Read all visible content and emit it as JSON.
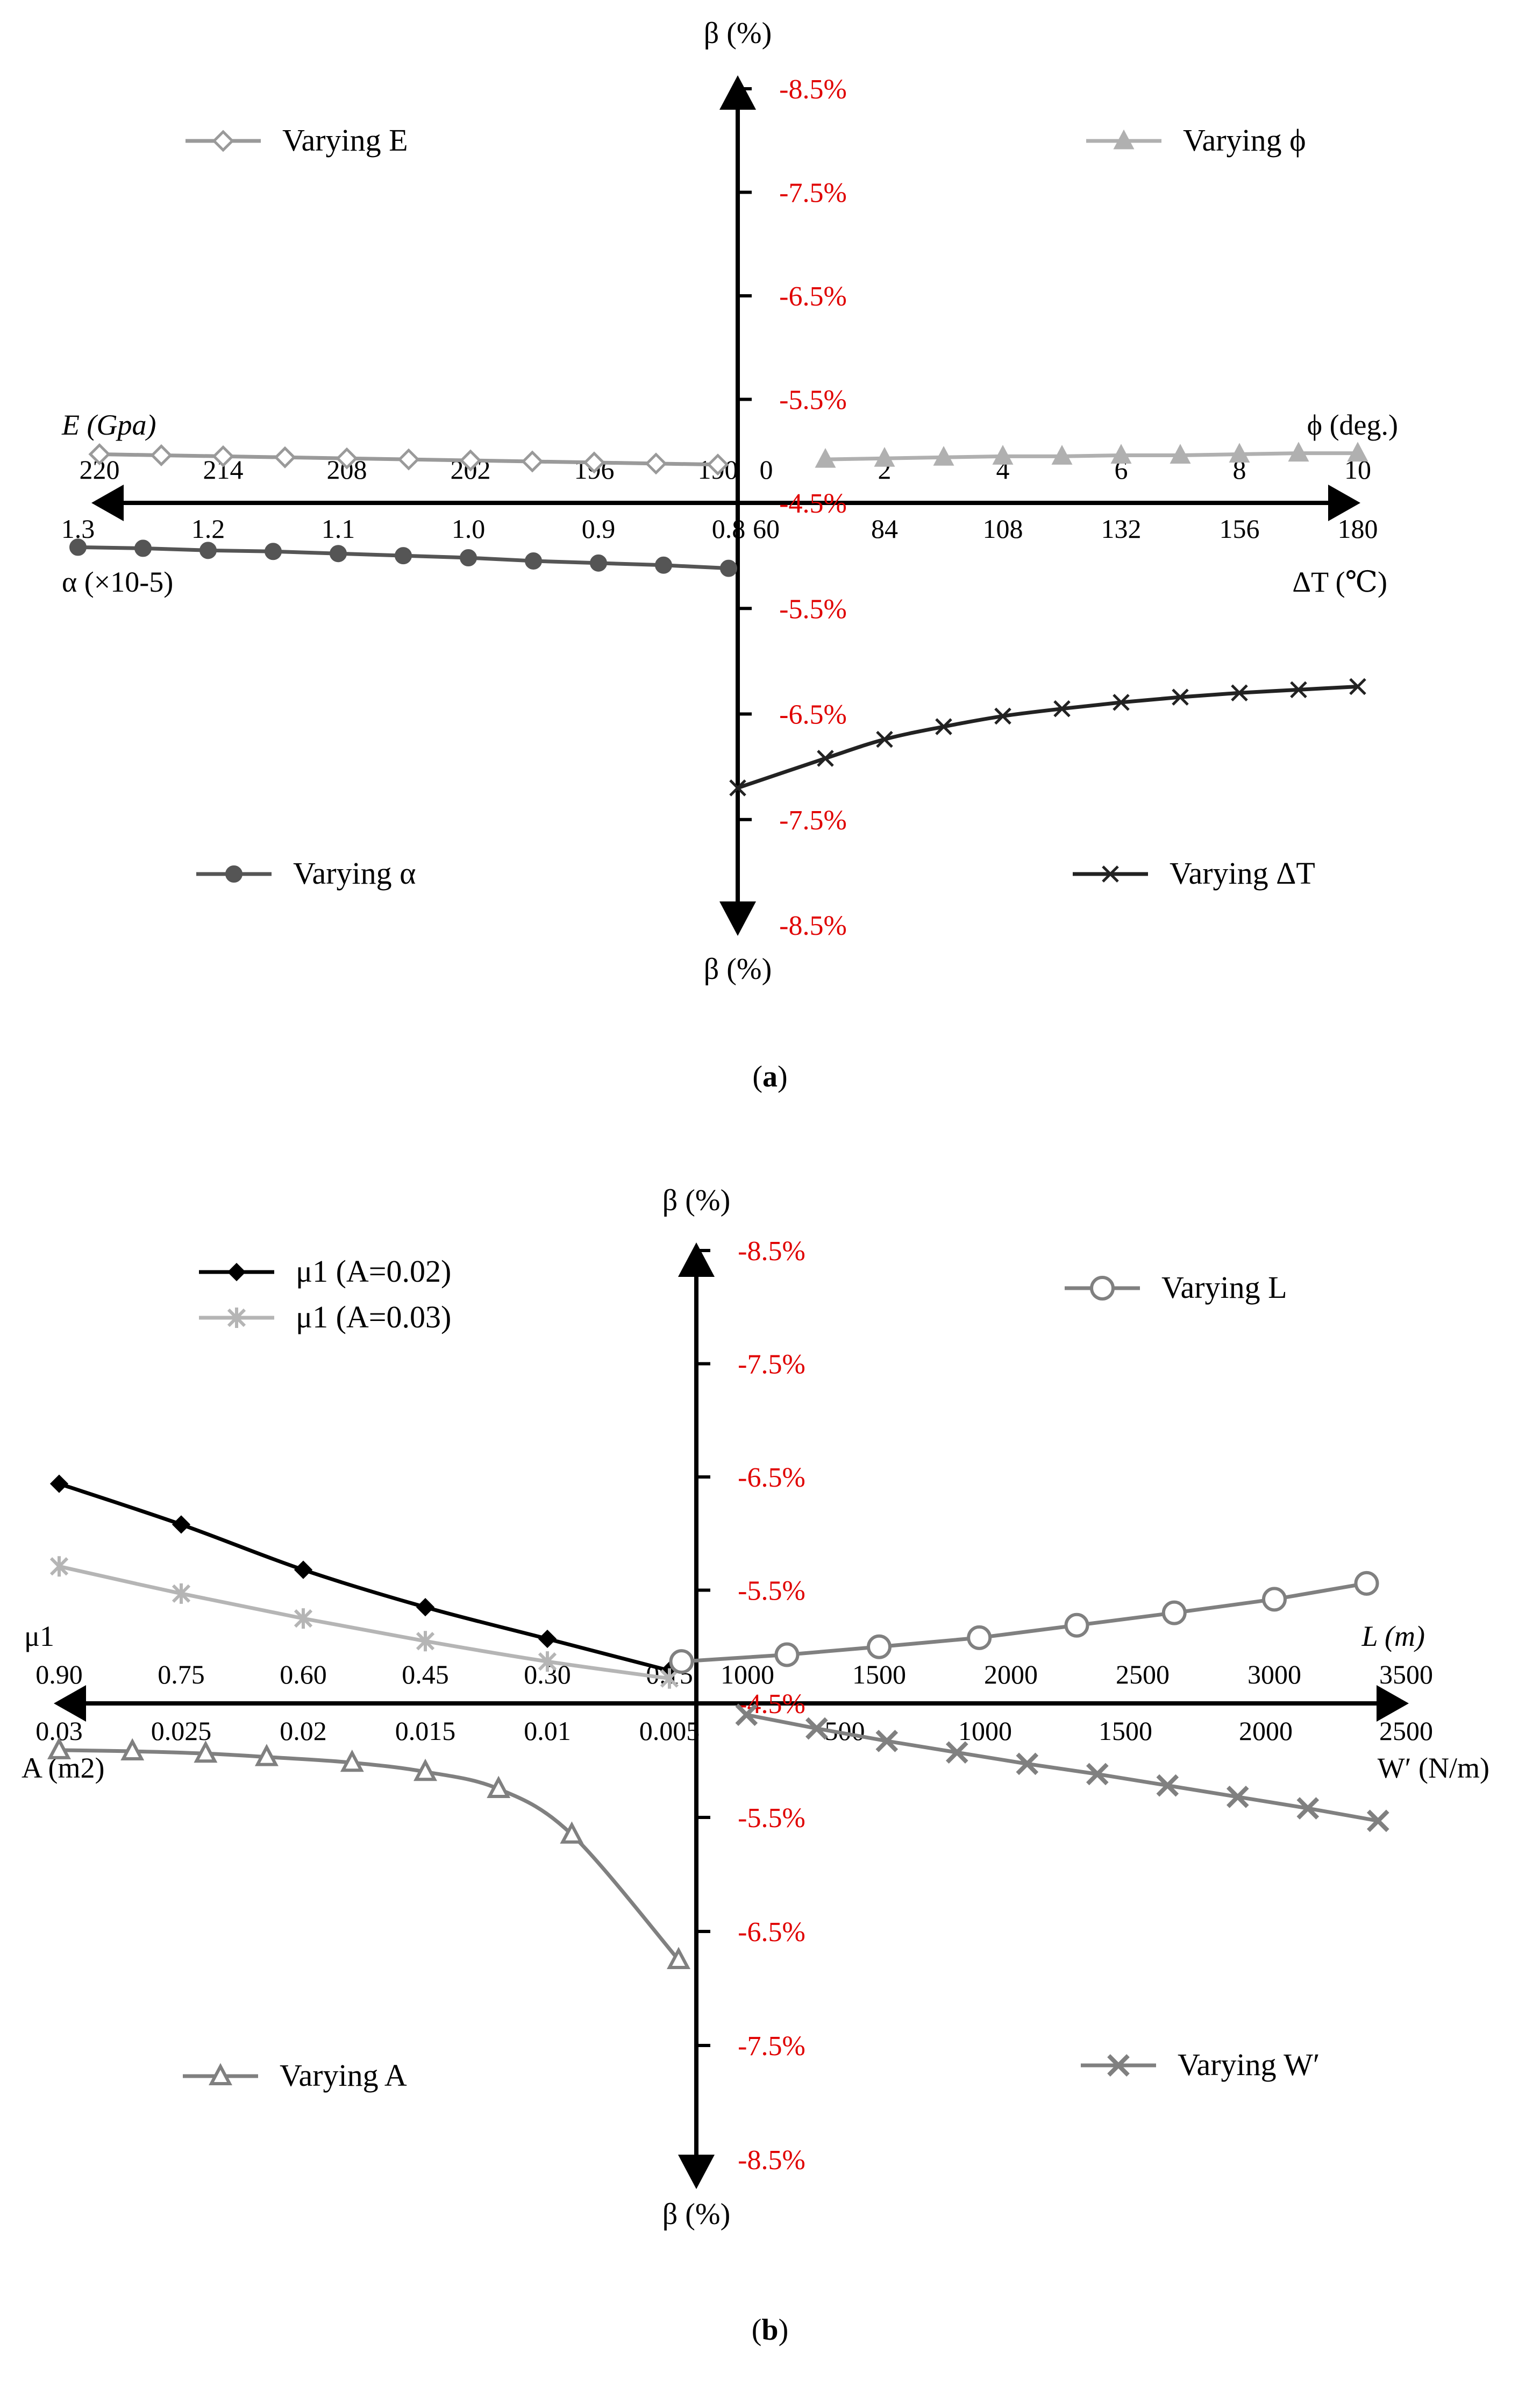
{
  "captions": {
    "a": "a",
    "b": "b"
  },
  "chart_data": [
    {
      "type": "line",
      "panel": "a",
      "upper_axis_label": "β (%)",
      "lower_axis_label": "β (%)",
      "upper_y_ticks": [
        "-8.5%",
        "-7.5%",
        "-6.5%",
        "-5.5%",
        "-4.5%"
      ],
      "lower_y_ticks": [
        "-5.5%",
        "-6.5%",
        "-7.5%",
        "-8.5%"
      ],
      "quadrants": {
        "upper_left": {
          "axis_label": "E (Gpa)",
          "ticks": [
            "220",
            "214",
            "208",
            "202",
            "196",
            "190"
          ],
          "series": {
            "name": "Varying E",
            "color": "#9a9a9a",
            "marker": "diamond-open",
            "x": [
              220,
              217,
              214,
              211,
              208,
              205,
              202,
              199,
              196,
              193,
              190
            ],
            "y": [
              -4.97,
              -4.96,
              -4.95,
              -4.94,
              -4.93,
              -4.92,
              -4.91,
              -4.9,
              -4.89,
              -4.88,
              -4.87
            ]
          }
        },
        "upper_right": {
          "axis_label": "ϕ (deg.)",
          "ticks": [
            "0",
            "2",
            "4",
            "6",
            "8",
            "10"
          ],
          "series": {
            "name": "Varying ϕ",
            "color": "#b0b0b0",
            "marker": "triangle-filled",
            "x": [
              1,
              2,
              3,
              4,
              5,
              6,
              7,
              8,
              9,
              10
            ],
            "y": [
              -4.92,
              -4.93,
              -4.94,
              -4.95,
              -4.95,
              -4.96,
              -4.96,
              -4.97,
              -4.98,
              -4.98
            ]
          }
        },
        "lower_left": {
          "axis_label": "α (×10-5)",
          "ticks": [
            "1.3",
            "1.2",
            "1.1",
            "1.0",
            "0.9",
            "0.8"
          ],
          "series": {
            "name": "Varying α",
            "color": "#555555",
            "marker": "circle-filled",
            "x": [
              1.3,
              1.25,
              1.2,
              1.15,
              1.1,
              1.05,
              1.0,
              0.95,
              0.9,
              0.85,
              0.8
            ],
            "y": [
              -4.92,
              -4.93,
              -4.95,
              -4.96,
              -4.98,
              -5.0,
              -5.02,
              -5.05,
              -5.07,
              -5.09,
              -5.12
            ]
          }
        },
        "lower_right": {
          "axis_label": "ΔT (℃)",
          "ticks": [
            "60",
            "84",
            "108",
            "132",
            "156",
            "180"
          ],
          "series": {
            "name": "Varying ΔT",
            "color": "#222222",
            "marker": "x",
            "x": [
              60,
              72,
              84,
              96,
              108,
              120,
              132,
              144,
              156,
              168,
              180
            ],
            "y": [
              -7.2,
              -6.92,
              -6.74,
              -6.62,
              -6.52,
              -6.45,
              -6.39,
              -6.34,
              -6.3,
              -6.27,
              -6.24
            ]
          }
        }
      }
    },
    {
      "type": "line",
      "panel": "b",
      "upper_axis_label": "β (%)",
      "lower_axis_label": "β (%)",
      "upper_y_ticks": [
        "-8.5%",
        "-7.5%",
        "-6.5%",
        "-5.5%",
        "-4.5%"
      ],
      "lower_y_ticks": [
        "-5.5%",
        "-6.5%",
        "-7.5%",
        "-8.5%"
      ],
      "legend": [
        "μ1 (A=0.02)",
        "μ1 (A=0.03)"
      ],
      "quadrants": {
        "upper_left": {
          "axis_label": "μ1",
          "ticks": [
            "0.90",
            "0.75",
            "0.60",
            "0.45",
            "0.30",
            "0.15"
          ],
          "series": [
            {
              "name": "μ1 (A=0.02)",
              "color": "#000000",
              "marker": "diamond-filled",
              "x": [
                0.9,
                0.75,
                0.6,
                0.45,
                0.3,
                0.15
              ],
              "y": [
                -6.44,
                -6.08,
                -5.68,
                -5.35,
                -5.07,
                -4.79
              ]
            },
            {
              "name": "μ1 (A=0.03)",
              "color": "#b5b5b5",
              "marker": "asterisk",
              "x": [
                0.9,
                0.75,
                0.6,
                0.45,
                0.3,
                0.15
              ],
              "y": [
                -5.71,
                -5.47,
                -5.25,
                -5.05,
                -4.87,
                -4.72
              ]
            }
          ]
        },
        "upper_right": {
          "axis_label": "L (m)",
          "ticks": [
            "1000",
            "1500",
            "2000",
            "2500",
            "3000",
            "3500"
          ],
          "series": {
            "name": "Varying L",
            "color": "#808080",
            "marker": "circle-open",
            "x": [
              750,
              1150,
              1500,
              1880,
              2250,
              2620,
              3000,
              3350
            ],
            "y": [
              -4.87,
              -4.93,
              -5.0,
              -5.08,
              -5.19,
              -5.3,
              -5.42,
              -5.56
            ]
          }
        },
        "lower_left": {
          "axis_label": "A (m2)",
          "ticks": [
            "0.03",
            "0.025",
            "0.02",
            "0.015",
            "0.01",
            "0.005"
          ],
          "series": {
            "name": "Varying A",
            "color": "#808080",
            "marker": "triangle-open",
            "x": [
              0.03,
              0.027,
              0.024,
              0.0215,
              0.018,
              0.015,
              0.012,
              0.009,
              0.0008
            ],
            "y": [
              -4.91,
              -4.92,
              -4.94,
              -4.97,
              -5.02,
              -5.1,
              -5.25,
              -5.65,
              -6.75
            ]
          }
        },
        "lower_right": {
          "axis_label": "W′ (N/m)",
          "ticks": [
            "500",
            "1000",
            "1500",
            "2000",
            "2500"
          ],
          "series": {
            "name": "Varying W′",
            "color": "#808080",
            "marker": "x-thick",
            "x": [
              150,
              400,
              650,
              900,
              1150,
              1400,
              1650,
              1900,
              2150,
              2400
            ],
            "y": [
              -4.6,
              -4.72,
              -4.83,
              -4.93,
              -5.03,
              -5.12,
              -5.22,
              -5.32,
              -5.42,
              -5.53
            ]
          }
        }
      }
    }
  ]
}
